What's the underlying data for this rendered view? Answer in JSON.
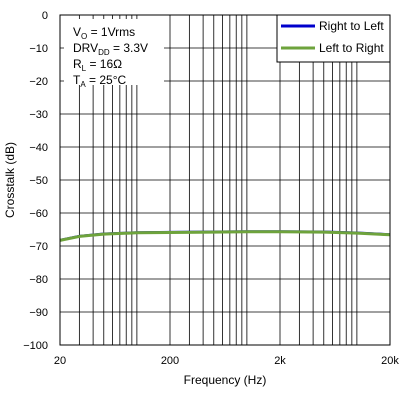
{
  "chart_data": {
    "type": "line",
    "xlabel": "Frequency (Hz)",
    "ylabel": "Crosstalk (dB)",
    "xscale": "log",
    "xlim": [
      20,
      20000
    ],
    "ylim": [
      -100,
      0
    ],
    "grid": true,
    "x_ticks": [
      20,
      200,
      2000,
      20000
    ],
    "x_tick_labels": [
      "20",
      "200",
      "2k",
      "20k"
    ],
    "y_ticks": [
      0,
      -10,
      -20,
      -30,
      -40,
      -50,
      -60,
      -70,
      -80,
      -90,
      -100
    ],
    "y_tick_labels": [
      "0",
      "−10",
      "−20",
      "−30",
      "−40",
      "−50",
      "−60",
      "−70",
      "−80",
      "−90",
      "−100"
    ],
    "legend_position": "top-right",
    "conditions": [
      {
        "main": "V",
        "sub": "O",
        "rest": " = 1Vrms"
      },
      {
        "main": "DRV",
        "sub": "DD",
        "rest": " = 3.3V"
      },
      {
        "main": "R",
        "sub": "L",
        "rest": " = 16Ω"
      },
      {
        "main": "T",
        "sub": "A",
        "rest": " = 25°C"
      }
    ],
    "series": [
      {
        "name": "Right to Left",
        "color": "#0000cc",
        "x": [
          20,
          30,
          50,
          100,
          200,
          500,
          1000,
          2000,
          5000,
          10000,
          20000
        ],
        "y": [
          -68.2,
          -67.0,
          -66.3,
          -65.9,
          -65.8,
          -65.7,
          -65.6,
          -65.6,
          -65.7,
          -66.0,
          -66.5
        ]
      },
      {
        "name": "Left to Right",
        "color": "#6ea33c",
        "x": [
          20,
          30,
          50,
          100,
          200,
          500,
          1000,
          2000,
          5000,
          10000,
          20000
        ],
        "y": [
          -68.3,
          -67.1,
          -66.4,
          -66.0,
          -65.9,
          -65.8,
          -65.7,
          -65.7,
          -65.8,
          -66.1,
          -66.6
        ]
      }
    ]
  }
}
